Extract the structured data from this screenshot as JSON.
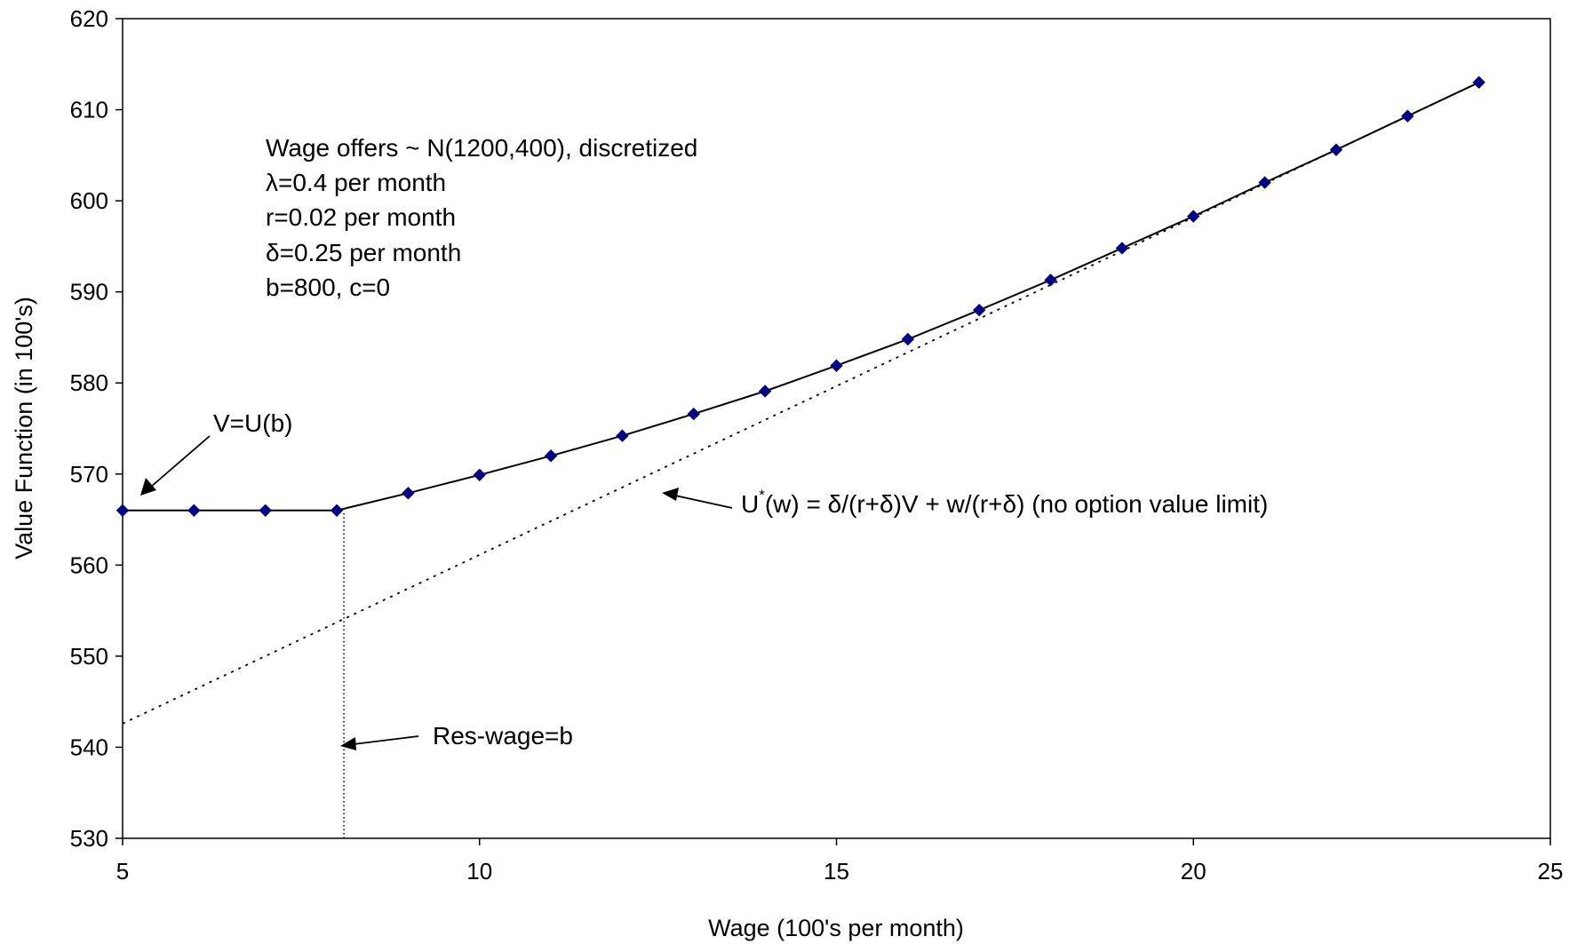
{
  "chart_data": {
    "type": "line",
    "title": "",
    "xlabel": "Wage (100's per month)",
    "ylabel": "Value Function (in 100's)",
    "xlim": [
      5,
      25
    ],
    "ylim": [
      530,
      620
    ],
    "xticks": [
      5,
      10,
      15,
      20,
      25
    ],
    "yticks": [
      530,
      540,
      550,
      560,
      570,
      580,
      590,
      600,
      610,
      620
    ],
    "grid": false,
    "legend": "none",
    "series": [
      {
        "name": "",
        "style": "solid-with-diamond-markers",
        "color": "#000080",
        "x": [
          5,
          6,
          7,
          8,
          9,
          10,
          11,
          12,
          13,
          14,
          15,
          16,
          17,
          18,
          19,
          20,
          21,
          22,
          23,
          24
        ],
        "y": [
          566,
          566,
          566,
          566,
          567.9,
          569.9,
          572,
          574.2,
          576.6,
          579.1,
          581.9,
          584.8,
          588,
          591.3,
          594.8,
          598.3,
          602,
          605.6,
          609.3,
          613
        ]
      },
      {
        "name": "",
        "style": "dotted",
        "color": "#000000",
        "x": [
          5,
          24
        ],
        "y": [
          542.6,
          613
        ]
      }
    ],
    "reference_line": {
      "x": 8.1,
      "y_from": 530,
      "y_to": 566
    },
    "annotations": {
      "params": [
        "Wage offers ~ N(1200,400), discretized",
        "λ=0.4 per month",
        "r=0.02 per month",
        "δ=0.25 per month",
        "b=800, c=0"
      ],
      "v_label": "V=U(b)",
      "ustar_base": "U",
      "ustar_sup": "*",
      "ustar_rest": "(w) = δ/(r+δ)V + w/(r+δ)   (no option value limit)",
      "reswage": "Res-wage=b"
    }
  }
}
